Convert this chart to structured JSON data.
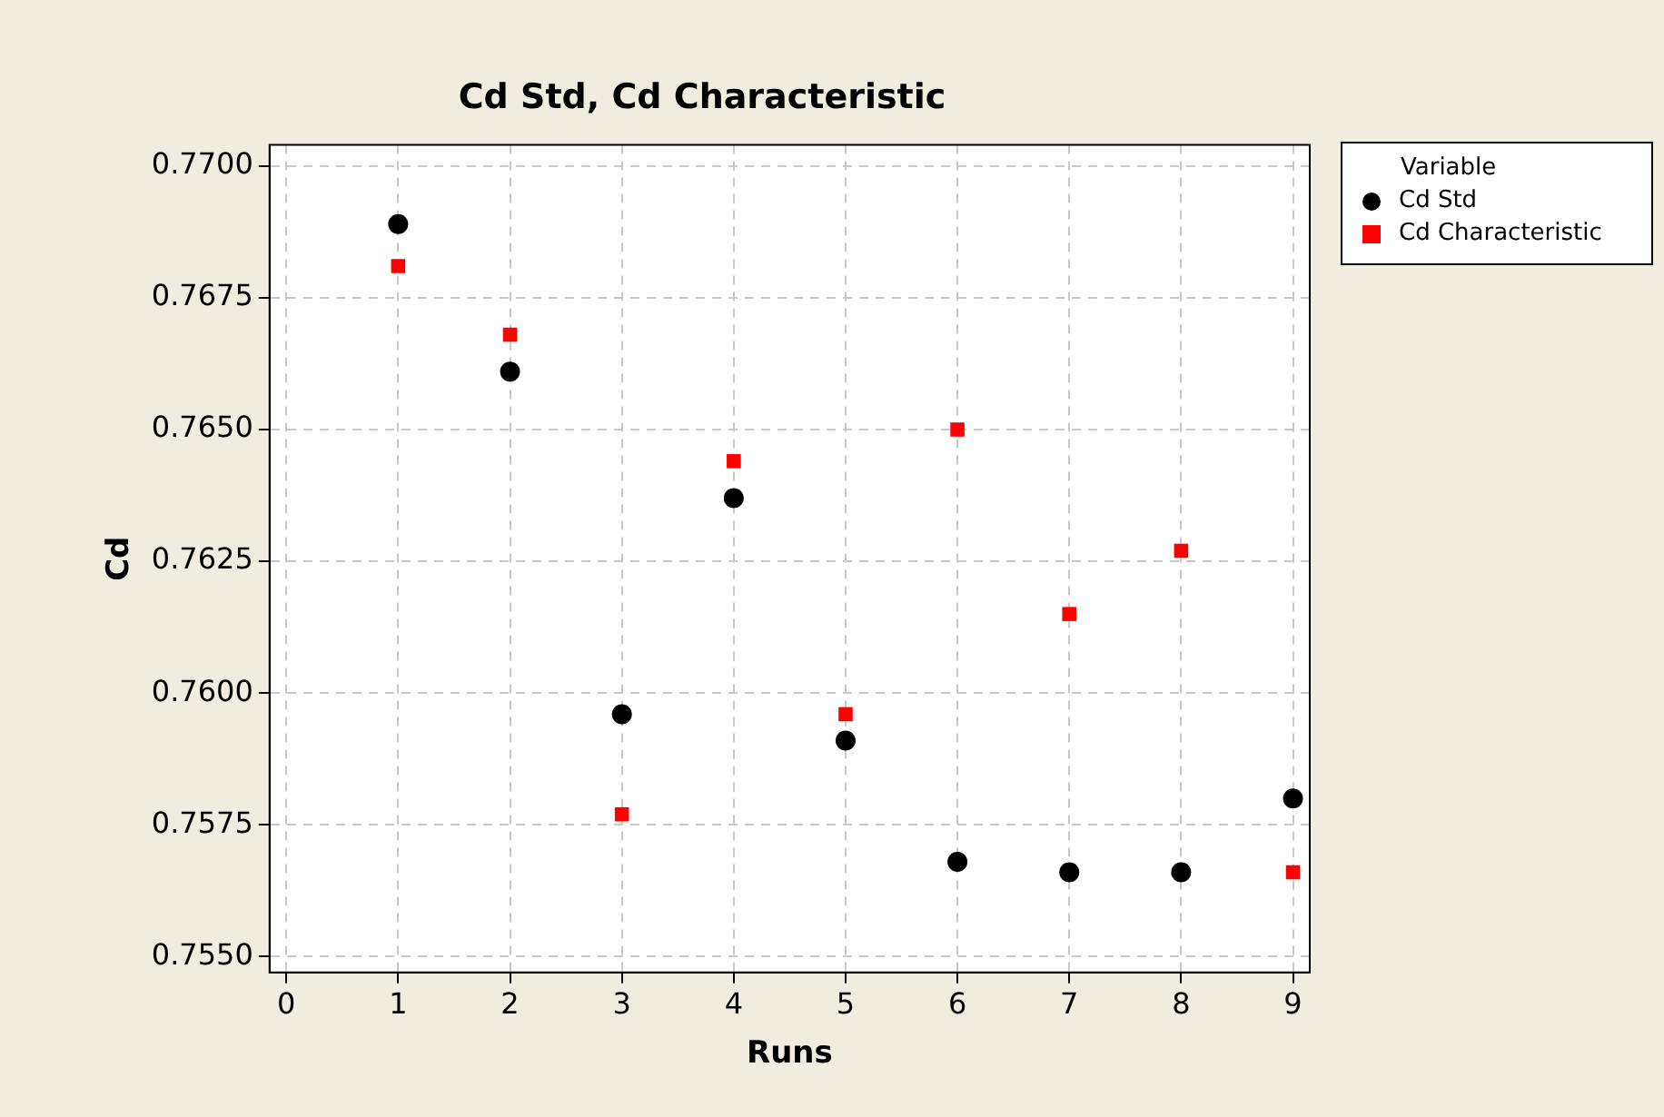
{
  "chart_data": {
    "type": "scatter",
    "title": "Cd Std, Cd Characteristic",
    "xlabel": "Runs",
    "ylabel": "Cd",
    "legend_title": "Variable",
    "x": [
      1,
      2,
      3,
      4,
      5,
      6,
      7,
      8,
      9
    ],
    "series": [
      {
        "name": "Cd Std",
        "color": "#000000",
        "marker": "circle",
        "values": [
          0.7689,
          0.7661,
          0.7596,
          0.7637,
          0.7591,
          0.7568,
          0.7566,
          0.7566,
          0.758
        ]
      },
      {
        "name": "Cd Characteristic",
        "color": "#ff0000",
        "marker": "square",
        "values": [
          0.7681,
          0.7668,
          0.7577,
          0.7644,
          0.7596,
          0.765,
          0.7615,
          0.7627,
          0.7566
        ]
      }
    ],
    "xlim": [
      -0.15,
      9.15
    ],
    "xticks": [
      0,
      1,
      2,
      3,
      4,
      5,
      6,
      7,
      8,
      9
    ],
    "ylim": [
      0.7547,
      0.7704
    ],
    "yticks": [
      {
        "value": 0.755,
        "label": "0.7550"
      },
      {
        "value": 0.7575,
        "label": "0.7575"
      },
      {
        "value": 0.76,
        "label": "0.7600"
      },
      {
        "value": 0.7625,
        "label": "0.7625"
      },
      {
        "value": 0.765,
        "label": "0.7650"
      },
      {
        "value": 0.7675,
        "label": "0.7675"
      },
      {
        "value": 0.77,
        "label": "0.7700"
      }
    ],
    "grid": true,
    "legend": "top right"
  }
}
